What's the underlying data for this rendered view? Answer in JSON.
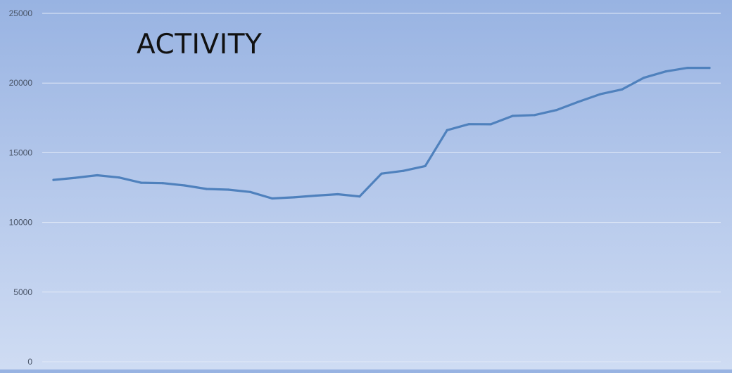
{
  "chart_data": {
    "type": "line",
    "title": "ACTIVITY",
    "xlabel": "",
    "ylabel": "",
    "ylim": [
      0,
      25000
    ],
    "yticks": [
      "0",
      "5000",
      "10000",
      "15000",
      "20000",
      "25000"
    ],
    "grid": true,
    "series": [
      {
        "color": "#4f81bd",
        "values": [
          13050,
          13200,
          13380,
          13220,
          12850,
          12820,
          12650,
          12400,
          12350,
          12180,
          11720,
          11800,
          11920,
          12020,
          11860,
          13500,
          13700,
          14040,
          16620,
          17050,
          17040,
          17640,
          17700,
          18060,
          18650,
          19200,
          19540,
          20380,
          20830,
          21090,
          21090
        ]
      }
    ]
  }
}
